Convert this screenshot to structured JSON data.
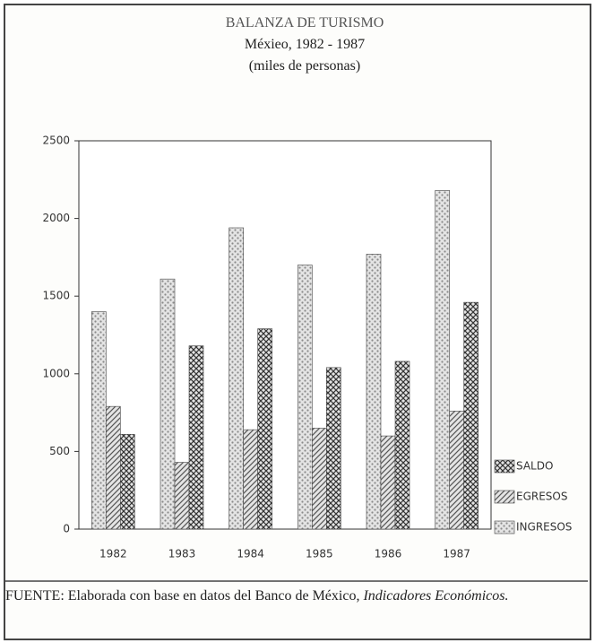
{
  "chart_data": {
    "type": "bar",
    "title": "BALANZA DE TURISMO",
    "subtitle": "Méxieo, 1982 - 1987",
    "unit_note": "(miles de personas)",
    "categories": [
      "1982",
      "1983",
      "1984",
      "1985",
      "1986",
      "1987"
    ],
    "series": [
      {
        "name": "INGRESOS",
        "color": "#8a8a8a",
        "hatch": "dots",
        "values": [
          1400,
          1610,
          1940,
          1700,
          1770,
          2180
        ]
      },
      {
        "name": "EGRESOS",
        "color": "#555555",
        "hatch": "diagonal",
        "values": [
          790,
          430,
          640,
          650,
          600,
          760
        ]
      },
      {
        "name": "SALDO",
        "color": "#333333",
        "hatch": "cross",
        "values": [
          610,
          1180,
          1290,
          1040,
          1080,
          1460
        ]
      }
    ],
    "ylim": [
      0,
      2500
    ],
    "yticks": [
      0,
      500,
      1000,
      1500,
      2000,
      2500
    ],
    "source": {
      "label": "FUENTE:",
      "text": "Elaborada con base en datos del Banco de México,",
      "publication": "Indicadores Económicos."
    }
  }
}
